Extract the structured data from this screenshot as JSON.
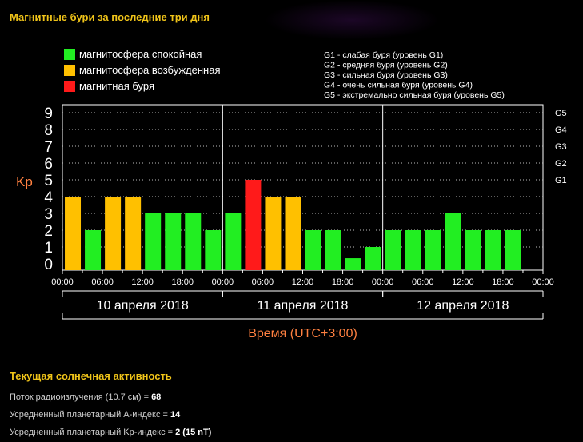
{
  "header": {
    "title": "Магнитные бури за последние три дня"
  },
  "legend": [
    {
      "label": "магнитосфера спокойная",
      "color": "#22ee22"
    },
    {
      "label": "магнитосфера возбужденная",
      "color": "#ffc000"
    },
    {
      "label": "магнитная буря",
      "color": "#ff1a1a"
    }
  ],
  "storm_levels": [
    "G1 - слабая буря (уровень G1)",
    "G2 - средняя буря (уровень G2)",
    "G3 - сильная буря (уровень G3)",
    "G4 - очень сильная буря (уровень G4)",
    "G5 - экстремально сильная буря (уровень G5)"
  ],
  "chart_data": {
    "type": "bar",
    "ylabel": "Kp",
    "xlabel": "Время (UTC+3:00)",
    "ylim": [
      0,
      9
    ],
    "y_ticks": [
      "0",
      "1",
      "2",
      "3",
      "4",
      "5",
      "6",
      "7",
      "8",
      "9"
    ],
    "g_ticks": [
      {
        "label": "G1",
        "kp": 5
      },
      {
        "label": "G2",
        "kp": 6
      },
      {
        "label": "G3",
        "kp": 7
      },
      {
        "label": "G4",
        "kp": 8
      },
      {
        "label": "G5",
        "kp": 9
      }
    ],
    "x_ticks": [
      "00:00",
      "06:00",
      "12:00",
      "18:00",
      "00:00",
      "06:00",
      "12:00",
      "18:00",
      "00:00",
      "06:00",
      "12:00",
      "18:00",
      "00:00"
    ],
    "days": [
      "10 апреля 2018",
      "11 апреля 2018",
      "12 апреля 2018"
    ],
    "interval_hours": 3,
    "values": [
      4,
      2,
      4,
      4,
      3,
      3,
      3,
      2,
      3,
      5,
      4,
      4,
      2,
      2,
      0.33,
      1,
      2,
      2,
      2,
      3,
      2,
      2,
      2
    ],
    "grid": true,
    "colors": {
      "quiet": "#22ee22",
      "active": "#ffc000",
      "storm": "#ff1a1a"
    }
  },
  "solar_activity": {
    "title": "Текущая солнечная активность",
    "lines": [
      {
        "label": "Поток радиоизлучения (10.7 см) = ",
        "value": "68",
        "suffix": ""
      },
      {
        "label": "Усредненный планетарный A-индекс = ",
        "value": "14",
        "suffix": ""
      },
      {
        "label": "Усредненный планетарный Kp-индекс = ",
        "value": "2",
        "suffix": " (15 nT)"
      }
    ]
  }
}
